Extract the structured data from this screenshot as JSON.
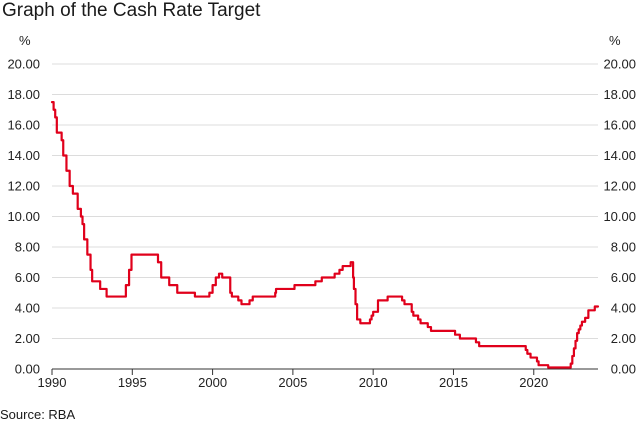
{
  "chart_data": {
    "type": "line",
    "title": "Graph of the Cash Rate Target",
    "source": "Source: RBA",
    "unit_left": "%",
    "unit_right": "%",
    "xlim": [
      1990,
      2024
    ],
    "ylim": [
      0,
      20
    ],
    "x_ticks": [
      1990,
      1995,
      2000,
      2005,
      2010,
      2015,
      2020
    ],
    "x_tick_labels": [
      "1990",
      "1995",
      "2000",
      "2005",
      "2010",
      "2015",
      "2020"
    ],
    "y_ticks": [
      0,
      2,
      4,
      6,
      8,
      10,
      12,
      14,
      16,
      18,
      20
    ],
    "y_tick_labels": [
      "0.00",
      "2.00",
      "4.00",
      "6.00",
      "8.00",
      "10.00",
      "12.00",
      "14.00",
      "16.00",
      "18.00",
      "20.00"
    ],
    "grid": true,
    "line_color": "#e0001b",
    "series": [
      {
        "step": true,
        "x": [
          1990.0,
          1990.1,
          1990.2,
          1990.3,
          1990.6,
          1990.7,
          1990.9,
          1991.1,
          1991.3,
          1991.6,
          1991.8,
          1991.9,
          1992.0,
          1992.2,
          1992.4,
          1992.5,
          1993.0,
          1993.4,
          1994.6,
          1994.8,
          1994.95,
          1996.6,
          1996.8,
          1997.3,
          1997.8,
          1998.9,
          1999.8,
          2000.0,
          2000.2,
          2000.4,
          2000.6,
          2001.1,
          2001.2,
          2001.6,
          2001.8,
          2002.3,
          2002.5,
          2003.9,
          2003.95,
          2005.1,
          2006.4,
          2006.8,
          2007.6,
          2007.9,
          2008.1,
          2008.6,
          2008.75,
          2008.8,
          2008.9,
          2009.0,
          2009.2,
          2009.8,
          2009.9,
          2010.0,
          2010.3,
          2010.9,
          2011.8,
          2011.95,
          2012.4,
          2012.5,
          2012.8,
          2012.95,
          2013.4,
          2013.6,
          2015.1,
          2015.4,
          2016.4,
          2016.6,
          2019.5,
          2019.6,
          2019.8,
          2020.2,
          2020.3,
          2020.9,
          2022.3,
          2022.4,
          2022.5,
          2022.6,
          2022.7,
          2022.8,
          2022.9,
          2023.0,
          2023.2,
          2023.4,
          2023.8
        ],
        "values": [
          17.5,
          17.0,
          16.5,
          15.5,
          15.0,
          14.0,
          13.0,
          12.0,
          11.5,
          10.5,
          10.0,
          9.5,
          8.5,
          7.5,
          6.5,
          5.75,
          5.25,
          4.75,
          5.5,
          6.5,
          7.5,
          7.0,
          6.0,
          5.5,
          5.0,
          4.75,
          5.0,
          5.5,
          6.0,
          6.25,
          6.0,
          5.0,
          4.75,
          4.5,
          4.25,
          4.5,
          4.75,
          5.0,
          5.25,
          5.5,
          5.75,
          6.0,
          6.25,
          6.5,
          6.75,
          7.0,
          6.0,
          5.25,
          4.25,
          3.25,
          3.0,
          3.25,
          3.5,
          3.75,
          4.5,
          4.75,
          4.5,
          4.25,
          3.75,
          3.5,
          3.25,
          3.0,
          2.75,
          2.5,
          2.25,
          2.0,
          1.75,
          1.5,
          1.25,
          1.0,
          0.75,
          0.5,
          0.25,
          0.1,
          0.35,
          0.85,
          1.35,
          1.85,
          2.35,
          2.6,
          2.85,
          3.1,
          3.35,
          3.85,
          4.1
        ],
        "x_end": 2024.0
      }
    ]
  }
}
